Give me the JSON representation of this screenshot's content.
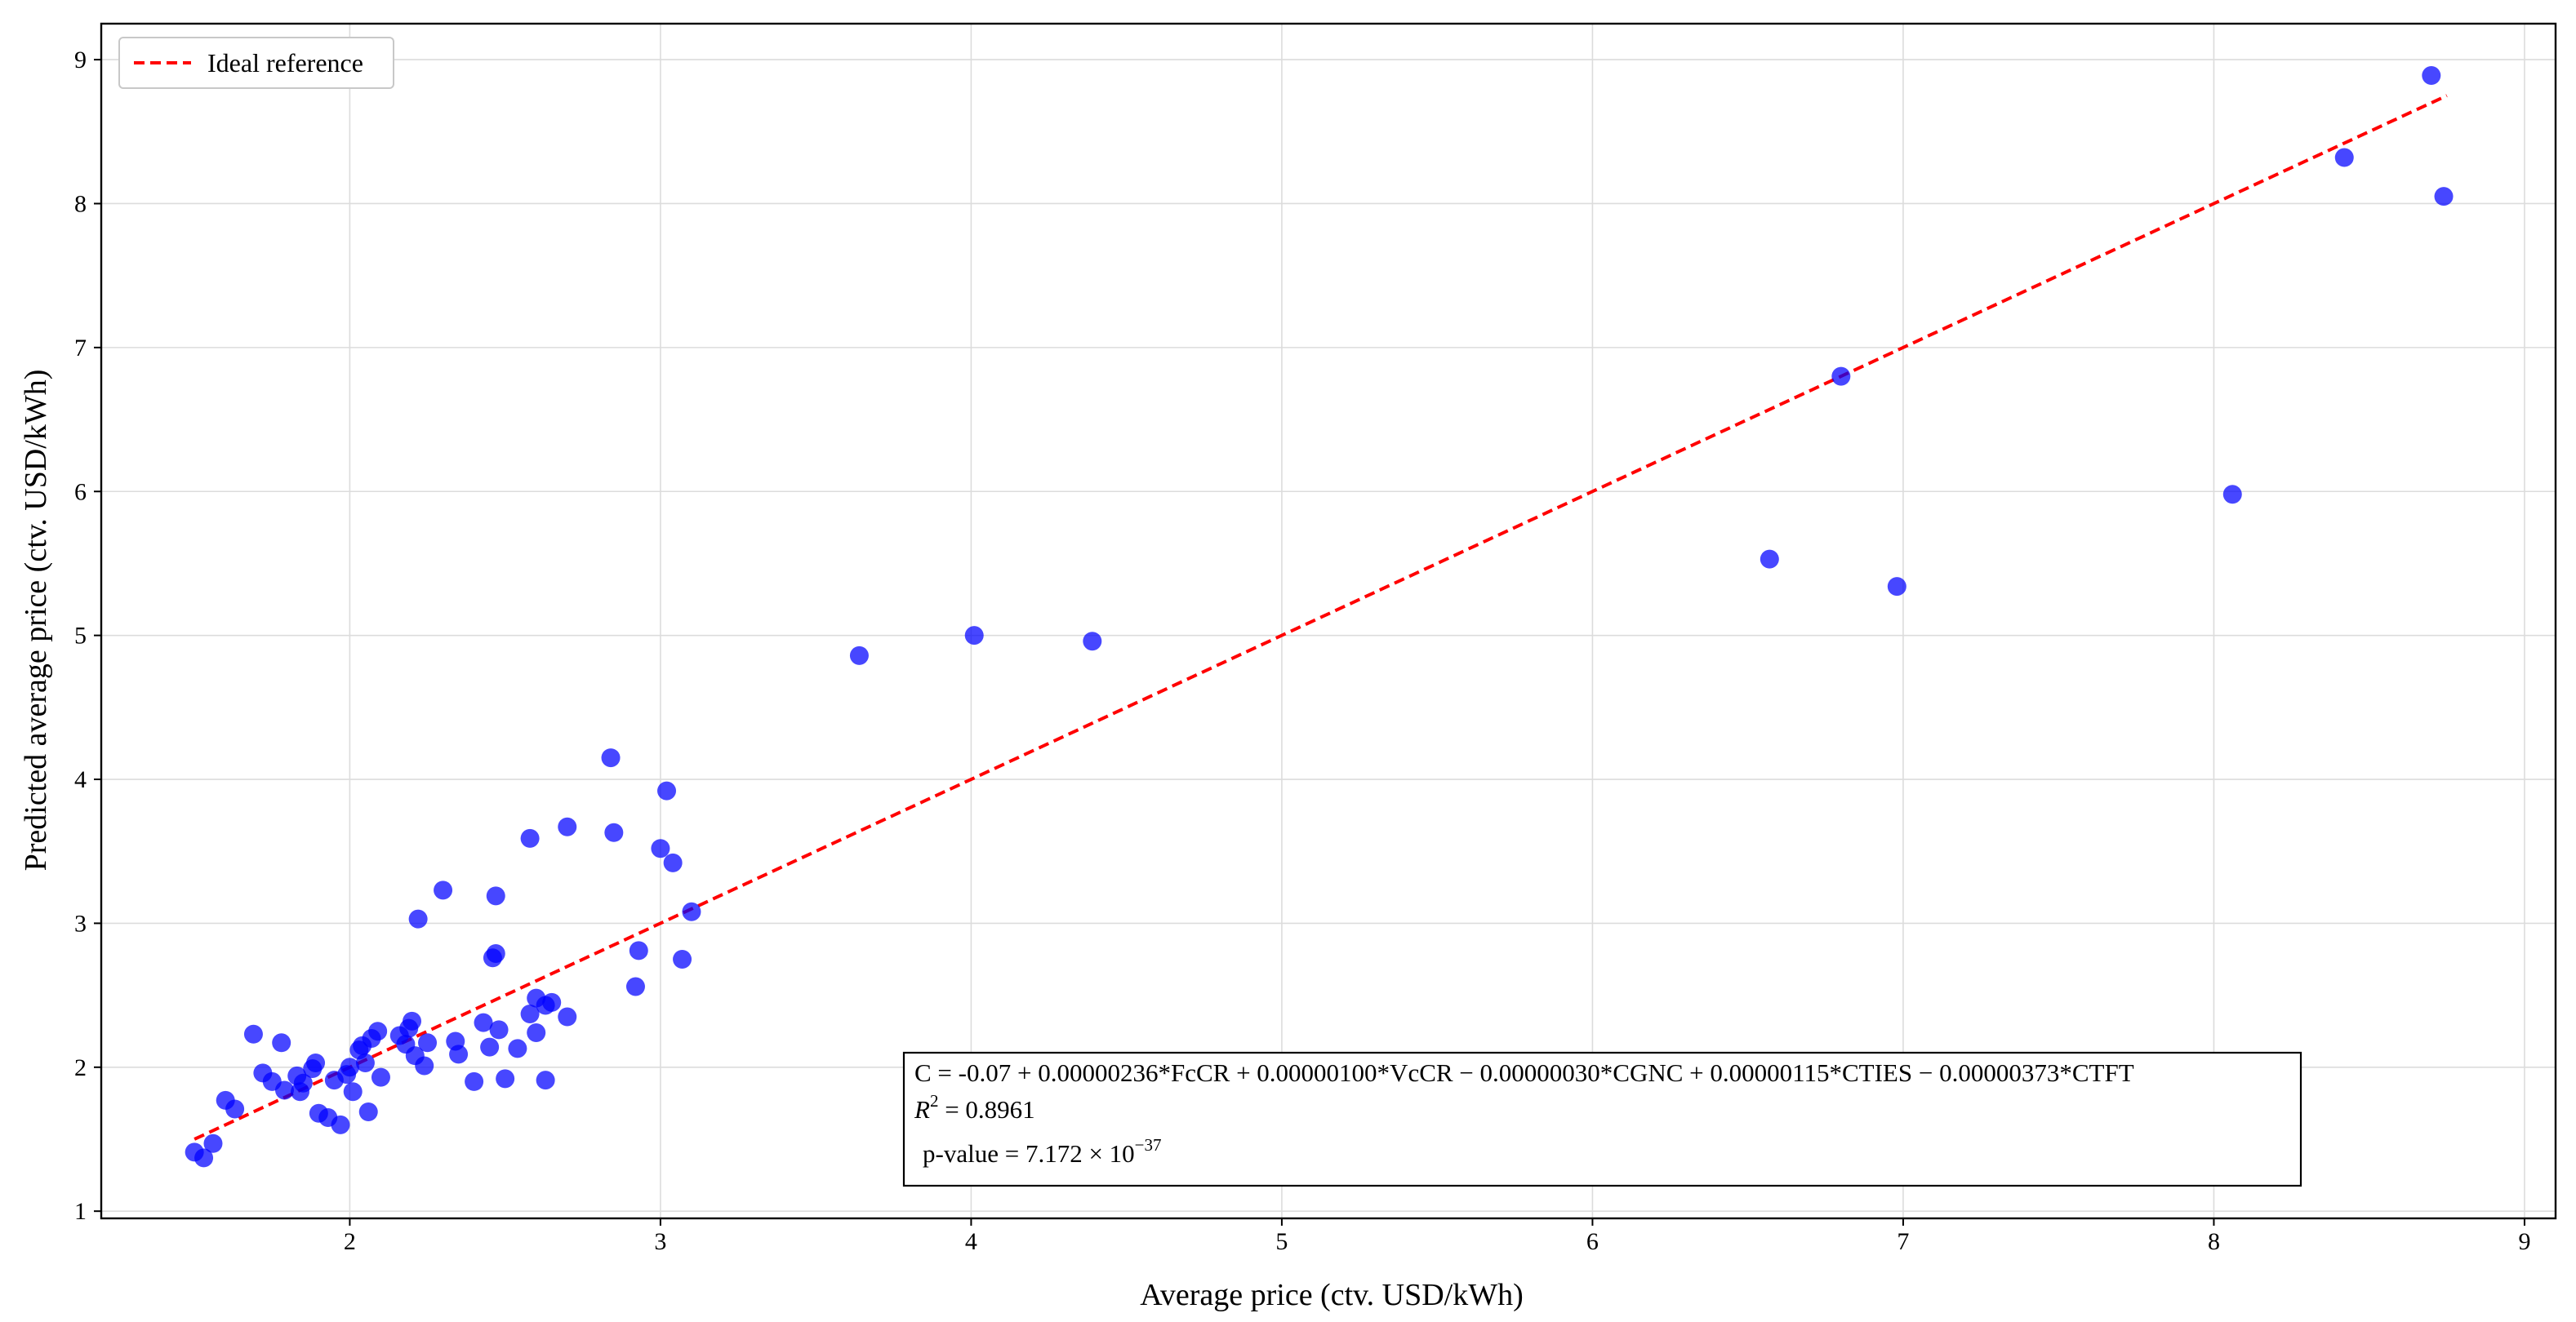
{
  "chart_data": {
    "type": "scatter",
    "xlabel": "Average price (ctv. USD/kWh)",
    "ylabel": "Predicted average price (ctv. USD/kWh)",
    "xlim": [
      1.2,
      9.1
    ],
    "ylim": [
      0.95,
      9.25
    ],
    "xticks": [
      2,
      3,
      4,
      5,
      6,
      7,
      8,
      9
    ],
    "yticks": [
      1,
      2,
      3,
      4,
      5,
      6,
      7,
      8,
      9
    ],
    "grid": true,
    "legend": {
      "position": "top-left",
      "entries": [
        "Ideal reference"
      ]
    },
    "reference_line": {
      "name": "Ideal reference",
      "color": "#ff0000",
      "style": "dashed",
      "x": [
        1.5,
        8.75
      ],
      "y": [
        1.5,
        8.75
      ]
    },
    "marker_color": "#0000ff",
    "annotation": {
      "equation": "C = -0.07 + 0.00000236*FcCR + 0.00000100*VcCR − 0.00000030*CGNC + 0.00000115*CTIES − 0.00000373*CTFT",
      "r2_label": "R",
      "r2_exp": "2",
      "r2_value": " = 0.8961",
      "pvalue_label": "p-value = 7.172 × 10",
      "pvalue_exp": "−37"
    },
    "points": [
      {
        "x": 1.5,
        "y": 1.41
      },
      {
        "x": 1.53,
        "y": 1.37
      },
      {
        "x": 1.56,
        "y": 1.47
      },
      {
        "x": 1.6,
        "y": 1.77
      },
      {
        "x": 1.63,
        "y": 1.71
      },
      {
        "x": 1.69,
        "y": 2.23
      },
      {
        "x": 1.72,
        "y": 1.96
      },
      {
        "x": 1.75,
        "y": 1.9
      },
      {
        "x": 1.78,
        "y": 2.17
      },
      {
        "x": 1.79,
        "y": 1.84
      },
      {
        "x": 1.83,
        "y": 1.94
      },
      {
        "x": 1.84,
        "y": 1.83
      },
      {
        "x": 1.85,
        "y": 1.89
      },
      {
        "x": 1.88,
        "y": 1.99
      },
      {
        "x": 1.89,
        "y": 2.03
      },
      {
        "x": 1.9,
        "y": 1.68
      },
      {
        "x": 1.93,
        "y": 1.65
      },
      {
        "x": 1.95,
        "y": 1.91
      },
      {
        "x": 1.97,
        "y": 1.6
      },
      {
        "x": 1.99,
        "y": 1.95
      },
      {
        "x": 2.0,
        "y": 2.0
      },
      {
        "x": 2.01,
        "y": 1.83
      },
      {
        "x": 2.03,
        "y": 2.12
      },
      {
        "x": 2.04,
        "y": 2.15
      },
      {
        "x": 2.05,
        "y": 2.03
      },
      {
        "x": 2.06,
        "y": 1.69
      },
      {
        "x": 2.07,
        "y": 2.2
      },
      {
        "x": 2.09,
        "y": 2.25
      },
      {
        "x": 2.1,
        "y": 1.93
      },
      {
        "x": 2.16,
        "y": 2.22
      },
      {
        "x": 2.18,
        "y": 2.16
      },
      {
        "x": 2.19,
        "y": 2.27
      },
      {
        "x": 2.2,
        "y": 2.32
      },
      {
        "x": 2.21,
        "y": 2.08
      },
      {
        "x": 2.22,
        "y": 3.03
      },
      {
        "x": 2.24,
        "y": 2.01
      },
      {
        "x": 2.25,
        "y": 2.17
      },
      {
        "x": 2.3,
        "y": 3.23
      },
      {
        "x": 2.34,
        "y": 2.18
      },
      {
        "x": 2.35,
        "y": 2.09
      },
      {
        "x": 2.4,
        "y": 1.9
      },
      {
        "x": 2.43,
        "y": 2.31
      },
      {
        "x": 2.45,
        "y": 2.14
      },
      {
        "x": 2.46,
        "y": 2.76
      },
      {
        "x": 2.47,
        "y": 2.79
      },
      {
        "x": 2.47,
        "y": 3.19
      },
      {
        "x": 2.48,
        "y": 2.26
      },
      {
        "x": 2.5,
        "y": 1.92
      },
      {
        "x": 2.54,
        "y": 2.13
      },
      {
        "x": 2.58,
        "y": 2.37
      },
      {
        "x": 2.58,
        "y": 3.59
      },
      {
        "x": 2.6,
        "y": 2.48
      },
      {
        "x": 2.6,
        "y": 2.24
      },
      {
        "x": 2.63,
        "y": 1.91
      },
      {
        "x": 2.63,
        "y": 2.43
      },
      {
        "x": 2.65,
        "y": 2.45
      },
      {
        "x": 2.7,
        "y": 2.35
      },
      {
        "x": 2.7,
        "y": 3.67
      },
      {
        "x": 2.84,
        "y": 4.15
      },
      {
        "x": 2.85,
        "y": 3.63
      },
      {
        "x": 2.92,
        "y": 2.56
      },
      {
        "x": 2.93,
        "y": 2.81
      },
      {
        "x": 3.0,
        "y": 3.52
      },
      {
        "x": 3.02,
        "y": 3.92
      },
      {
        "x": 3.04,
        "y": 3.42
      },
      {
        "x": 3.07,
        "y": 2.75
      },
      {
        "x": 3.1,
        "y": 3.08
      },
      {
        "x": 3.64,
        "y": 4.86
      },
      {
        "x": 4.01,
        "y": 5.0
      },
      {
        "x": 4.39,
        "y": 4.96
      },
      {
        "x": 6.57,
        "y": 5.53
      },
      {
        "x": 6.8,
        "y": 6.8
      },
      {
        "x": 6.98,
        "y": 5.34
      },
      {
        "x": 8.06,
        "y": 5.98
      },
      {
        "x": 8.42,
        "y": 8.32
      },
      {
        "x": 8.7,
        "y": 8.89
      },
      {
        "x": 8.74,
        "y": 8.05
      }
    ]
  }
}
